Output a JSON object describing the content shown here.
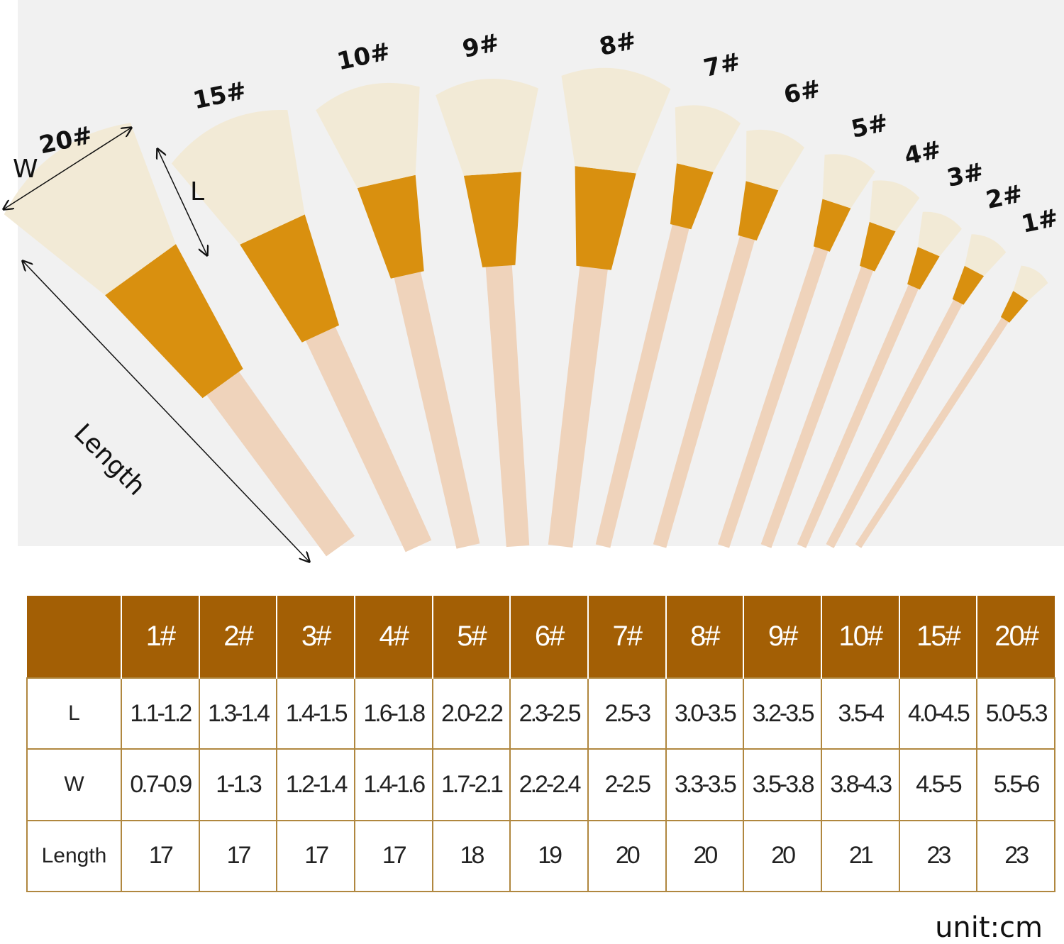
{
  "brush_labels": [
    "20#",
    "15#",
    "10#",
    "9#",
    "8#",
    "7#",
    "6#",
    "5#",
    "4#",
    "3#",
    "2#",
    "1#"
  ],
  "dimension_labels": {
    "width": "W",
    "bristle_length": "L",
    "total_length": "Length"
  },
  "colors": {
    "header": "#a35f05",
    "grid": "#b0873f",
    "bristle": "#f2ead6",
    "ferrule": "#d9900f",
    "handle": "#efd3bb"
  },
  "table": {
    "columns": [
      "",
      "1#",
      "2#",
      "3#",
      "4#",
      "5#",
      "6#",
      "7#",
      "8#",
      "9#",
      "10#",
      "15#",
      "20#"
    ],
    "rows": [
      {
        "label": "L",
        "values": [
          "1.1-1.2",
          "1.3-1.4",
          "1.4-1.5",
          "1.6-1.8",
          "2.0-2.2",
          "2.3-2.5",
          "2.5-3",
          "3.0-3.5",
          "3.2-3.5",
          "3.5-4",
          "4.0-4.5",
          "5.0-5.3"
        ]
      },
      {
        "label": "W",
        "values": [
          "0.7-0.9",
          "1-1.3",
          "1.2-1.4",
          "1.4-1.6",
          "1.7-2.1",
          "2.2-2.4",
          "2-2.5",
          "3.3-3.5",
          "3.5-3.8",
          "3.8-4.3",
          "4.5-5",
          "5.5-6"
        ]
      },
      {
        "label": "Length",
        "values": [
          "17",
          "17",
          "17",
          "17",
          "18",
          "19",
          "20",
          "20",
          "20",
          "21",
          "23",
          "23"
        ]
      }
    ]
  },
  "unit": "unit:cm"
}
